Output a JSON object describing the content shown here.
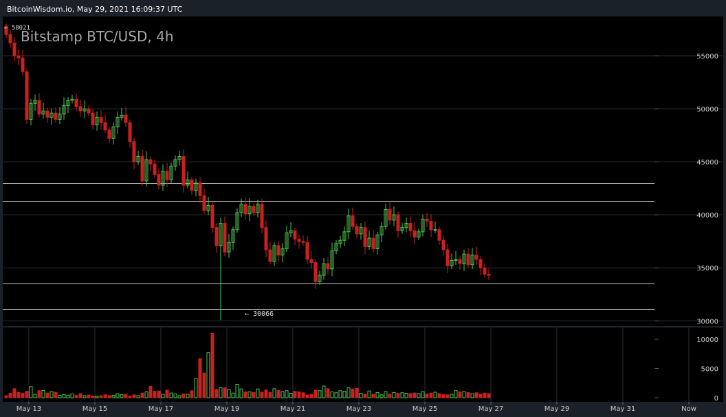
{
  "header": {
    "text": "BitcoinWisdom.io, May 29, 2021 16:09:37 UTC"
  },
  "chart_data": {
    "type": "candlestick",
    "title": "Bitstamp BTC/USD, 4h",
    "price_axis": {
      "ticks": [
        "55000",
        "50000",
        "45000",
        "40000",
        "35000",
        "30000"
      ],
      "values": [
        55000,
        50000,
        45000,
        40000,
        35000,
        30000
      ],
      "range": [
        29500,
        58700
      ]
    },
    "volume_axis": {
      "ticks": [
        "10000",
        "5000",
        "0"
      ],
      "values": [
        10000,
        5000,
        0
      ],
      "range": [
        0,
        12000
      ]
    },
    "time_axis": {
      "labels": [
        "May 13",
        "May 15",
        "May 17",
        "May 19",
        "May 21",
        "May 23",
        "May 25",
        "May 27",
        "May 29",
        "May 31",
        "Now"
      ]
    },
    "annotations": {
      "high_label": "← 58021",
      "low_label": "← 30066",
      "high": 58021,
      "low": 30066
    },
    "levels": [
      43000,
      41300,
      33500,
      31100
    ],
    "colors": {
      "up": "#4ec94e",
      "down": "#cc1f1f",
      "grid": "#2a2f36",
      "text": "#cccccc",
      "level": "#c8c8c8",
      "bg": "#000000"
    },
    "candles_close": [
      57000,
      56200,
      55000,
      54800,
      53500,
      49000,
      50500,
      50800,
      49500,
      49800,
      49200,
      49600,
      49000,
      49500,
      50300,
      50800,
      50900,
      50200,
      49800,
      50000,
      49600,
      48500,
      49200,
      48700,
      48000,
      47200,
      48300,
      49200,
      49400,
      48700,
      46900,
      45000,
      45500,
      43200,
      45200,
      44800,
      43800,
      42800,
      44100,
      43300,
      44600,
      45200,
      45500,
      42800,
      43300,
      42300,
      43000,
      41800,
      40400,
      40900,
      38800,
      37100,
      39200,
      36500,
      37400,
      38600,
      40200,
      41000,
      40100,
      40800,
      40200,
      41000,
      38800,
      36700,
      35600,
      37100,
      36200,
      36800,
      38300,
      38500,
      37700,
      37500,
      37400,
      35800,
      35500,
      33700,
      34300,
      35400,
      34900,
      36600,
      37300,
      37600,
      38400,
      39900,
      38900,
      38200,
      38800,
      37000,
      37800,
      36800,
      38100,
      38900,
      40500,
      39500,
      40000,
      38500,
      38800,
      39200,
      38500,
      37900,
      38400,
      39600,
      39400,
      38600,
      38600,
      37600,
      36700,
      35200,
      35700,
      35800,
      35400,
      36300,
      35300,
      36200,
      35800,
      35000,
      34400,
      34300
    ],
    "volumes": [
      350,
      750,
      1550,
      900,
      750,
      1100,
      1900,
      600,
      1200,
      1250,
      800,
      1050,
      950,
      400,
      550,
      450,
      650,
      400,
      700,
      350,
      450,
      300,
      250,
      350,
      500,
      350,
      400,
      700,
      550,
      600,
      300,
      500,
      350,
      800,
      1000,
      1950,
      1100,
      1150,
      600,
      1300,
      800,
      650,
      350,
      650,
      600,
      1200,
      3300,
      6700,
      4200,
      7700,
      11000,
      1400,
      1700,
      1700,
      1400,
      800,
      2300,
      1500,
      1000,
      1000,
      900,
      1500,
      950,
      1350,
      900,
      1550,
      1250,
      1050,
      1200,
      750,
      1100,
      1000,
      850,
      450,
      600,
      1300,
      1200,
      2000,
      1550,
      1000,
      850,
      1200,
      1100,
      1700,
      1500,
      1600,
      750,
      650,
      1150,
      600,
      900,
      500,
      1050,
      650,
      900,
      750,
      850,
      750,
      700,
      800,
      700,
      1050,
      650,
      800,
      950,
      700,
      550,
      500,
      600,
      1200,
      1000,
      1050,
      900,
      700,
      850,
      650,
      800,
      700,
      500,
      150
    ]
  }
}
